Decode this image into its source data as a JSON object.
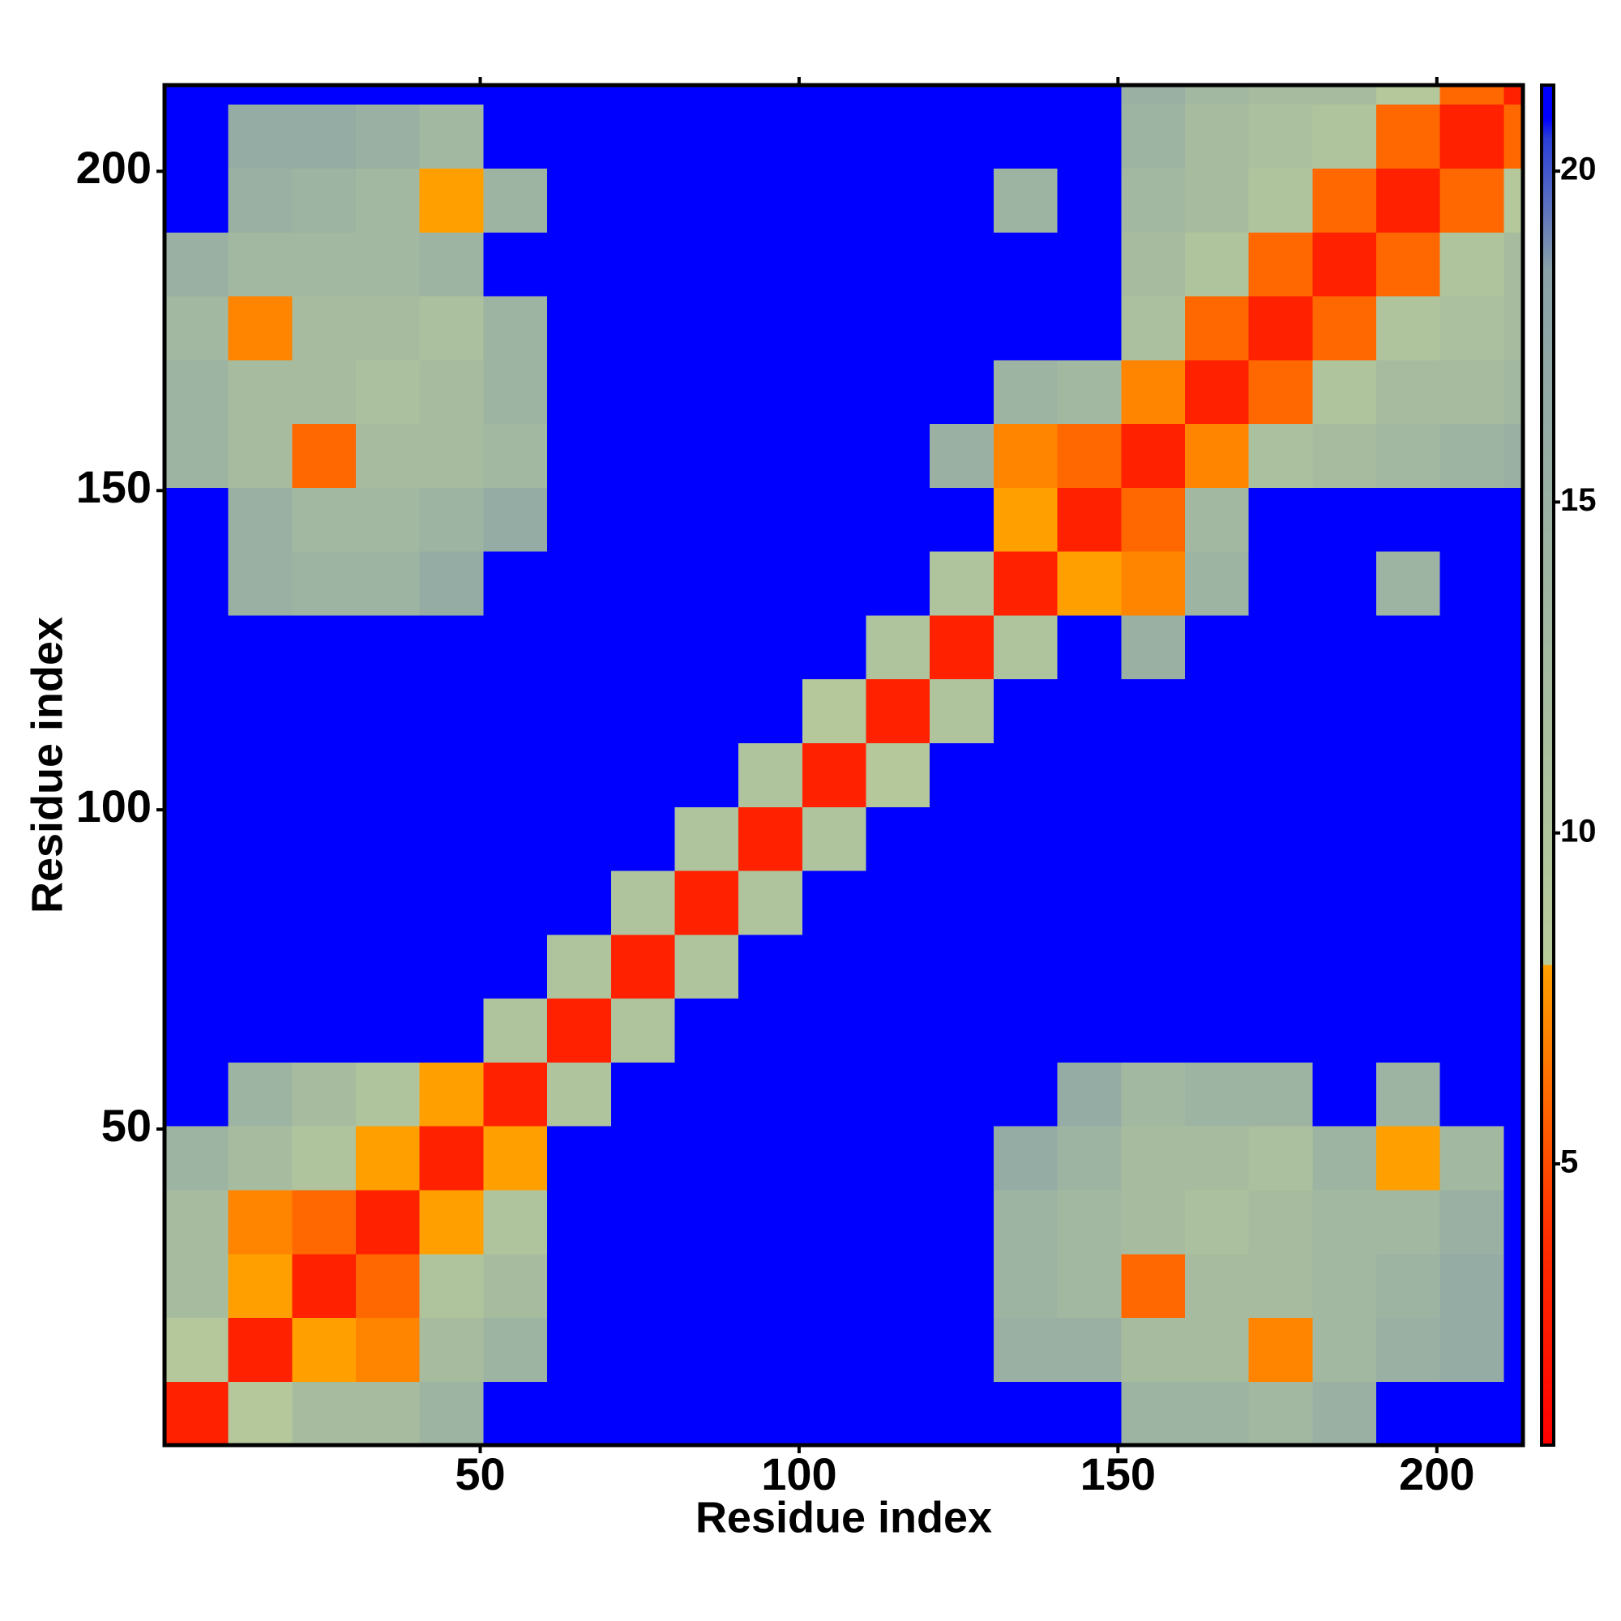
{
  "chart_data": {
    "type": "heatmap",
    "x_label": "Residue index",
    "y_label": "Residue index",
    "xlim": [
      0.5,
      213.5
    ],
    "ylim": [
      0.5,
      213.5
    ],
    "xticks": [
      50,
      100,
      150,
      200
    ],
    "yticks": [
      50,
      100,
      150,
      200
    ],
    "x_bins": [
      0.5,
      10.5,
      20.5,
      30.5,
      40.5,
      50.5,
      60.5,
      70.5,
      80.5,
      90.5,
      100.5,
      110.5,
      120.5,
      130.5,
      140.5,
      150.5,
      160.5,
      170.5,
      180.5,
      190.5,
      200.5,
      210.5,
      213.5
    ],
    "y_bins": [
      0.5,
      10.5,
      20.5,
      30.5,
      40.5,
      50.5,
      60.5,
      70.5,
      80.5,
      90.5,
      100.5,
      110.5,
      120.5,
      130.5,
      140.5,
      150.5,
      160.5,
      170.5,
      180.5,
      190.5,
      200.5,
      210.5,
      213.5
    ],
    "values": [
      [
        3,
        9,
        12,
        12,
        14,
        21,
        21,
        21,
        21,
        21,
        21,
        21,
        21,
        21,
        21,
        14,
        14,
        13,
        15,
        21,
        21,
        21
      ],
      [
        9,
        3,
        8,
        7,
        12,
        14,
        21,
        21,
        21,
        21,
        21,
        21,
        21,
        15,
        15,
        12,
        12,
        7,
        13,
        15,
        16,
        21
      ],
      [
        12,
        8,
        3,
        6,
        10,
        12,
        21,
        21,
        21,
        21,
        21,
        21,
        21,
        14,
        13,
        6,
        12,
        12,
        13,
        14,
        16,
        21
      ],
      [
        12,
        7,
        6,
        3,
        8,
        10,
        21,
        21,
        21,
        21,
        21,
        21,
        21,
        14,
        13,
        12,
        11,
        12,
        13,
        13,
        15,
        21
      ],
      [
        14,
        12,
        10,
        8,
        3,
        8,
        21,
        21,
        21,
        21,
        21,
        21,
        21,
        16,
        14,
        12,
        12,
        11,
        14,
        8,
        13,
        21
      ],
      [
        21,
        14,
        12,
        10,
        8,
        3,
        10,
        21,
        21,
        21,
        21,
        21,
        21,
        21,
        16,
        13,
        14,
        14,
        21,
        14,
        21,
        21
      ],
      [
        21,
        21,
        21,
        21,
        21,
        10,
        3,
        10,
        21,
        21,
        21,
        21,
        21,
        21,
        21,
        21,
        21,
        21,
        21,
        21,
        21,
        21
      ],
      [
        21,
        21,
        21,
        21,
        21,
        21,
        10,
        3,
        10,
        21,
        21,
        21,
        21,
        21,
        21,
        21,
        21,
        21,
        21,
        21,
        21,
        21
      ],
      [
        21,
        21,
        21,
        21,
        21,
        21,
        21,
        10,
        3,
        10,
        21,
        21,
        21,
        21,
        21,
        21,
        21,
        21,
        21,
        21,
        21,
        21
      ],
      [
        21,
        21,
        21,
        21,
        21,
        21,
        21,
        21,
        10,
        3,
        10,
        21,
        21,
        21,
        21,
        21,
        21,
        21,
        21,
        21,
        21,
        21
      ],
      [
        21,
        21,
        21,
        21,
        21,
        21,
        21,
        21,
        21,
        10,
        3,
        9,
        21,
        21,
        21,
        21,
        21,
        21,
        21,
        21,
        21,
        21
      ],
      [
        21,
        21,
        21,
        21,
        21,
        21,
        21,
        21,
        21,
        21,
        9,
        3,
        10,
        21,
        21,
        21,
        21,
        21,
        21,
        21,
        21,
        21
      ],
      [
        21,
        21,
        21,
        21,
        21,
        21,
        21,
        21,
        21,
        21,
        21,
        10,
        3,
        10,
        21,
        15,
        21,
        21,
        21,
        21,
        21,
        21
      ],
      [
        21,
        15,
        14,
        14,
        16,
        21,
        21,
        21,
        21,
        21,
        21,
        21,
        10,
        3,
        8,
        7,
        14,
        21,
        21,
        14,
        21,
        21
      ],
      [
        21,
        15,
        13,
        13,
        14,
        16,
        21,
        21,
        21,
        21,
        21,
        21,
        21,
        8,
        3,
        6,
        13,
        21,
        21,
        21,
        21,
        21
      ],
      [
        14,
        12,
        6,
        12,
        12,
        13,
        21,
        21,
        21,
        21,
        21,
        21,
        15,
        7,
        6,
        3,
        7,
        11,
        12,
        13,
        14,
        15
      ],
      [
        14,
        12,
        12,
        11,
        12,
        14,
        21,
        21,
        21,
        21,
        21,
        21,
        21,
        14,
        13,
        7,
        3,
        6,
        10,
        12,
        12,
        13
      ],
      [
        13,
        7,
        12,
        12,
        11,
        14,
        21,
        21,
        21,
        21,
        21,
        21,
        21,
        21,
        21,
        11,
        6,
        3,
        6,
        10,
        11,
        12
      ],
      [
        15,
        13,
        13,
        13,
        14,
        21,
        21,
        21,
        21,
        21,
        21,
        21,
        21,
        21,
        21,
        12,
        10,
        6,
        3,
        6,
        10,
        12
      ],
      [
        21,
        15,
        14,
        13,
        8,
        14,
        21,
        21,
        21,
        21,
        21,
        21,
        21,
        14,
        21,
        13,
        12,
        10,
        6,
        3,
        6,
        9
      ],
      [
        21,
        16,
        16,
        15,
        13,
        21,
        21,
        21,
        21,
        21,
        21,
        21,
        21,
        21,
        21,
        14,
        12,
        11,
        10,
        6,
        3,
        6
      ],
      [
        21,
        21,
        21,
        21,
        21,
        21,
        21,
        21,
        21,
        21,
        21,
        21,
        21,
        21,
        21,
        15,
        13,
        12,
        12,
        9,
        6,
        3
      ]
    ],
    "clim": [
      0.75,
      21.3
    ],
    "cticks": [
      5,
      10,
      15,
      20
    ],
    "colorscale": [
      {
        "value": 0.75,
        "color": "#ff0000"
      },
      {
        "value": 4,
        "color": "#ff3000"
      },
      {
        "value": 8,
        "color": "#ffa000"
      },
      {
        "value": 8.01,
        "color": "#b8cc9a"
      },
      {
        "value": 18.5,
        "color": "#8aa2a8"
      },
      {
        "value": 20.5,
        "color": "#2a3ed8"
      },
      {
        "value": 20.8,
        "color": "#0000ff"
      }
    ]
  }
}
